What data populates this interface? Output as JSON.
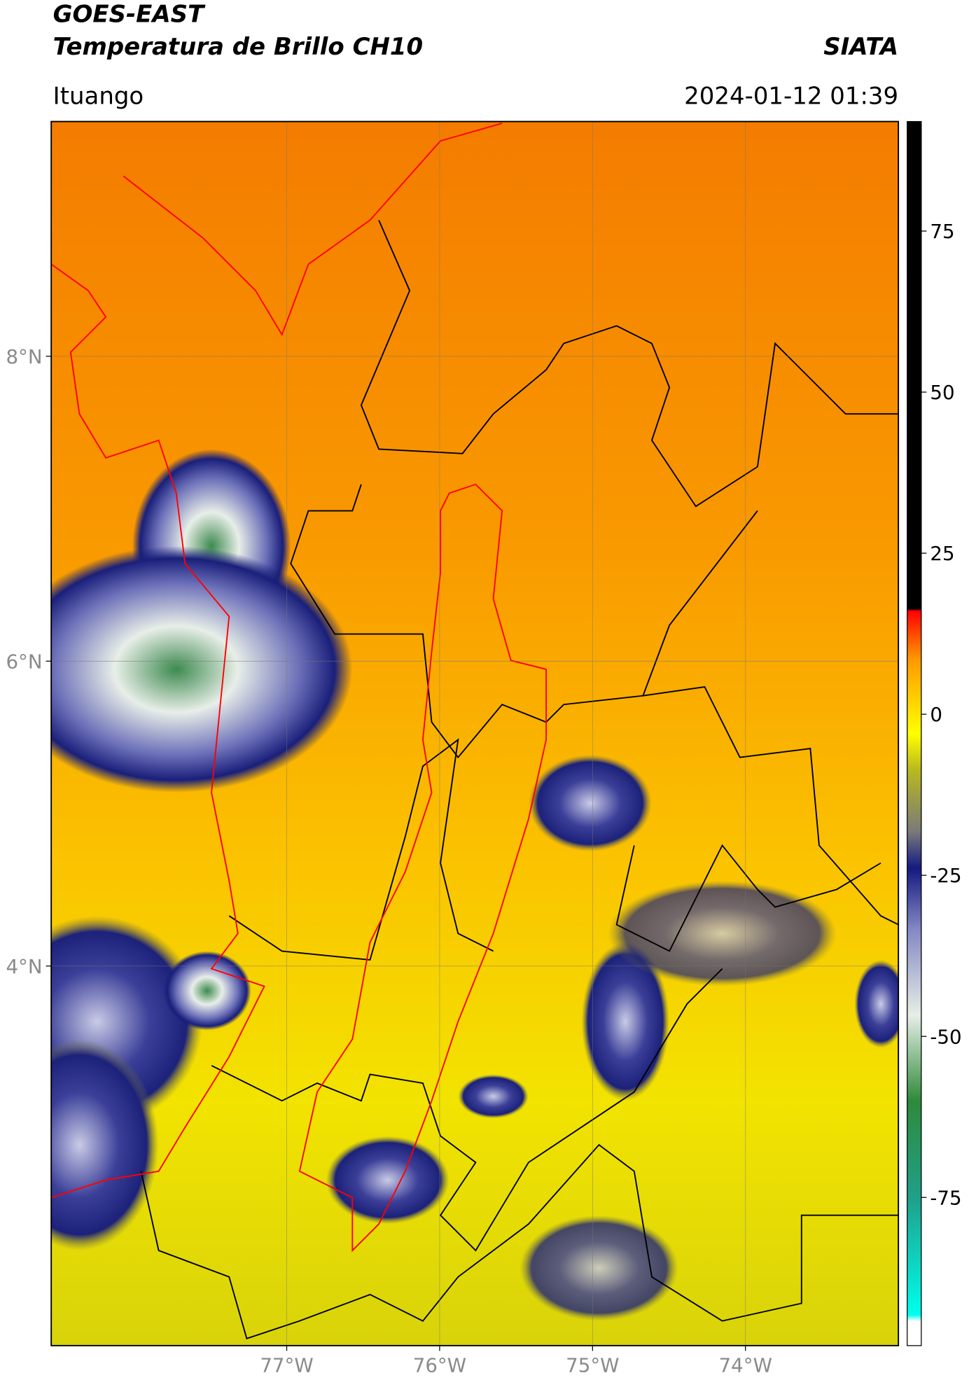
{
  "header": {
    "title": "GOES-EAST",
    "subtitle": "Temperatura de Brillo CH10",
    "source": "SIATA",
    "location": "Ituango",
    "datetime": "2024-01-12 01:39"
  },
  "map": {
    "xlim": [
      -78.54,
      -73.0
    ],
    "ylim": [
      1.51,
      9.54
    ],
    "grid": true,
    "xticks": [
      {
        "value": -77,
        "label": "77°W"
      },
      {
        "value": -76,
        "label": "76°W"
      },
      {
        "value": -75,
        "label": "75°W"
      },
      {
        "value": -74,
        "label": "74°W"
      }
    ],
    "yticks": [
      {
        "value": 8,
        "label": "8°N"
      },
      {
        "value": 6,
        "label": "6°N"
      },
      {
        "value": 4,
        "label": "4°N"
      }
    ]
  },
  "colorbar": {
    "lim": [
      -98,
      92
    ],
    "ticks": [
      -75,
      -50,
      -25,
      0,
      25,
      50,
      75
    ]
  }
}
